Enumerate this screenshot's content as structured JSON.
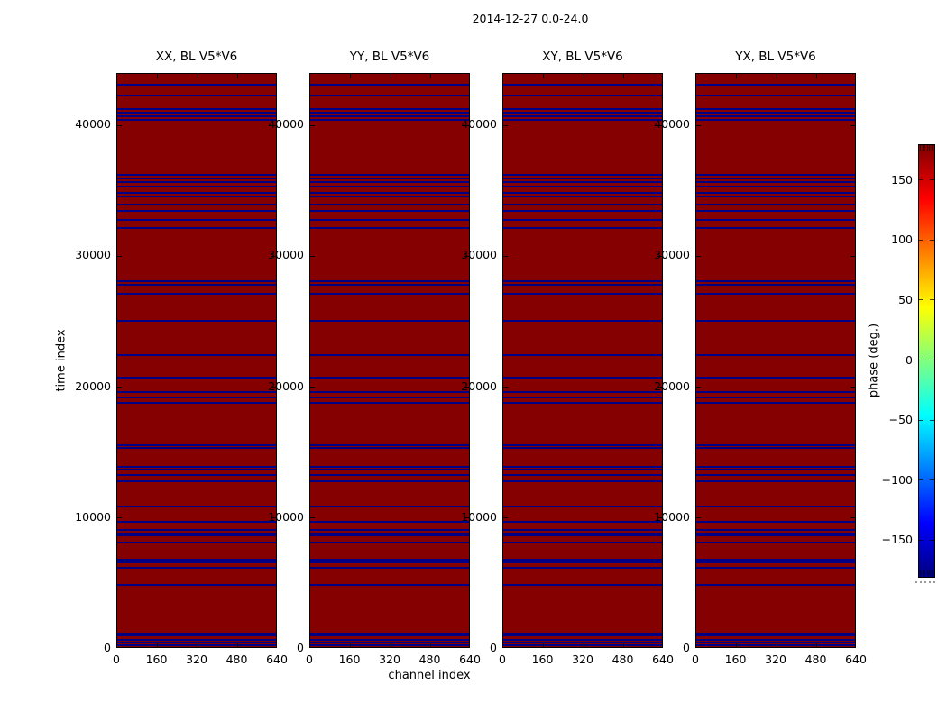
{
  "figure": {
    "suptitle": "2014-12-27 0.0-24.0",
    "background_color": "#ffffff"
  },
  "chart_data": {
    "type": "heatmap",
    "suptitle": "2014-12-27 0.0-24.0",
    "xlabel": "channel index",
    "ylabel": "time index",
    "panels": [
      {
        "title": "XX, BL V5*V6"
      },
      {
        "title": "YY, BL V5*V6"
      },
      {
        "title": "XY, BL V5*V6"
      },
      {
        "title": "YX, BL V5*V6"
      }
    ],
    "x_range": [
      0,
      640
    ],
    "y_range": [
      0,
      43930
    ],
    "x_ticks": [
      0,
      160,
      320,
      480,
      640
    ],
    "x_tick_labels": [
      "0",
      "160",
      "320",
      "480",
      "640"
    ],
    "y_ticks": [
      0,
      10000,
      20000,
      30000,
      40000
    ],
    "y_tick_labels": [
      "0",
      "10000",
      "20000",
      "30000",
      "40000"
    ],
    "body_phase_deg": 180,
    "stripe_phase_deg": -180,
    "body_color": "#850000",
    "stripe_color": "#000084",
    "stripe_time_indices": [
      43100,
      42270,
      41240,
      40970,
      40690,
      40420,
      36220,
      35940,
      35660,
      35320,
      34840,
      34560,
      33940,
      33460,
      32770,
      32150,
      28090,
      27820,
      27130,
      25060,
      22450,
      20720,
      19620,
      19210,
      18800,
      15560,
      15350,
      13910,
      13700,
      13290,
      12810,
      10880,
      9710,
      9090,
      8810,
      8680,
      8120,
      6820,
      6610,
      6200,
      4890,
      1170,
      1030,
      690,
      480,
      280
    ],
    "colorbar": {
      "label": "phase (deg.)",
      "range": [
        -180,
        180
      ],
      "ticks": [
        150,
        100,
        50,
        0,
        -50,
        -100,
        -150
      ],
      "tick_labels": [
        "150",
        "100",
        "50",
        "0",
        "−50",
        "−100",
        "−150"
      ],
      "colormap": "jet",
      "gradient_stops": [
        {
          "color": "#000080",
          "pct": 0
        },
        {
          "color": "#0000ff",
          "pct": 12.5
        },
        {
          "color": "#00ffff",
          "pct": 37.5
        },
        {
          "color": "#ffff00",
          "pct": 62.5
        },
        {
          "color": "#ff0000",
          "pct": 87.5
        },
        {
          "color": "#800000",
          "pct": 100
        }
      ]
    }
  }
}
